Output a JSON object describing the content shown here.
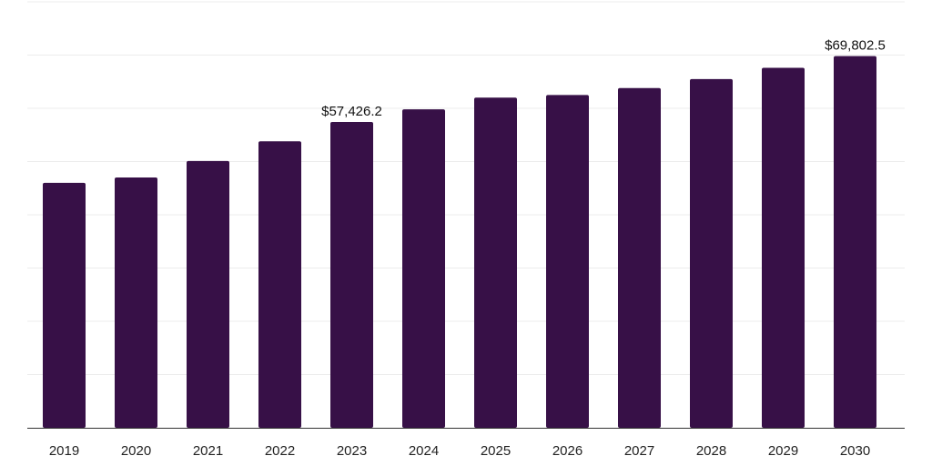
{
  "chart_data": {
    "type": "bar",
    "categories": [
      "2019",
      "2020",
      "2021",
      "2022",
      "2023",
      "2024",
      "2025",
      "2026",
      "2027",
      "2028",
      "2029",
      "2030"
    ],
    "values": [
      46000,
      47000,
      50100,
      53800,
      57426.2,
      59800,
      62000,
      62500,
      63800,
      65500,
      67600,
      69802.5
    ],
    "data_labels": [
      {
        "category": "2023",
        "text": "$57,426.2"
      },
      {
        "category": "2030",
        "text": "$69,802.5"
      }
    ],
    "title": "",
    "xlabel": "",
    "ylabel": "",
    "ylim": [
      0,
      80000
    ],
    "grid": true,
    "legend": "none",
    "colors": {
      "bar": "#371047",
      "grid": "#ececec",
      "axis": "#333333",
      "text": "#222222"
    }
  }
}
